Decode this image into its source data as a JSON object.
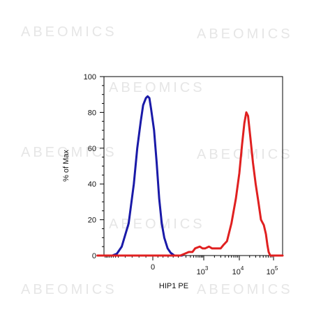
{
  "watermark_text": "ABEOMICS",
  "chart_data": {
    "type": "line",
    "title": "",
    "xlabel": "HIP1 PE",
    "ylabel": "% of Max",
    "ylim": [
      0,
      100
    ],
    "yticks": [
      0,
      20,
      40,
      60,
      80,
      100
    ],
    "xscale": "biexponential",
    "xticks": [
      {
        "value": 0,
        "base": "0",
        "exp": ""
      },
      {
        "value": 1000,
        "base": "10",
        "exp": "3"
      },
      {
        "value": 10000,
        "base": "10",
        "exp": "4"
      },
      {
        "value": 100000,
        "base": "10",
        "exp": "5"
      }
    ],
    "grid": false,
    "series": [
      {
        "color": "#1a1aa8",
        "points": [
          [
            -150,
            0
          ],
          [
            -110,
            1
          ],
          [
            -90,
            5
          ],
          [
            -70,
            18
          ],
          [
            -55,
            40
          ],
          [
            -45,
            60
          ],
          [
            -35,
            75
          ],
          [
            -28,
            84
          ],
          [
            -20,
            88
          ],
          [
            -15,
            89
          ],
          [
            -10,
            88
          ],
          [
            -5,
            82
          ],
          [
            5,
            70
          ],
          [
            15,
            52
          ],
          [
            25,
            32
          ],
          [
            35,
            18
          ],
          [
            45,
            10
          ],
          [
            58,
            4
          ],
          [
            70,
            1.5
          ],
          [
            85,
            0
          ],
          [
            140,
            0
          ]
        ]
      },
      {
        "color": "#e02020",
        "points": [
          [
            -400,
            0
          ],
          [
            -200,
            0
          ],
          [
            0,
            0
          ],
          [
            120,
            0
          ],
          [
            180,
            1
          ],
          [
            260,
            2
          ],
          [
            360,
            2
          ],
          [
            460,
            4
          ],
          [
            700,
            5
          ],
          [
            900,
            4
          ],
          [
            1100,
            4
          ],
          [
            1400,
            5
          ],
          [
            1700,
            4
          ],
          [
            2300,
            4
          ],
          [
            3000,
            4
          ],
          [
            3600,
            6
          ],
          [
            4500,
            8
          ],
          [
            6000,
            18
          ],
          [
            8000,
            32
          ],
          [
            10000,
            46
          ],
          [
            12000,
            62
          ],
          [
            14000,
            74
          ],
          [
            16000,
            80
          ],
          [
            18000,
            78
          ],
          [
            21000,
            66
          ],
          [
            25000,
            52
          ],
          [
            30000,
            40
          ],
          [
            36000,
            30
          ],
          [
            43000,
            20
          ],
          [
            52000,
            17
          ],
          [
            60000,
            12
          ],
          [
            66000,
            6
          ],
          [
            72000,
            2
          ],
          [
            80000,
            0
          ],
          [
            120000,
            0
          ]
        ]
      }
    ]
  }
}
